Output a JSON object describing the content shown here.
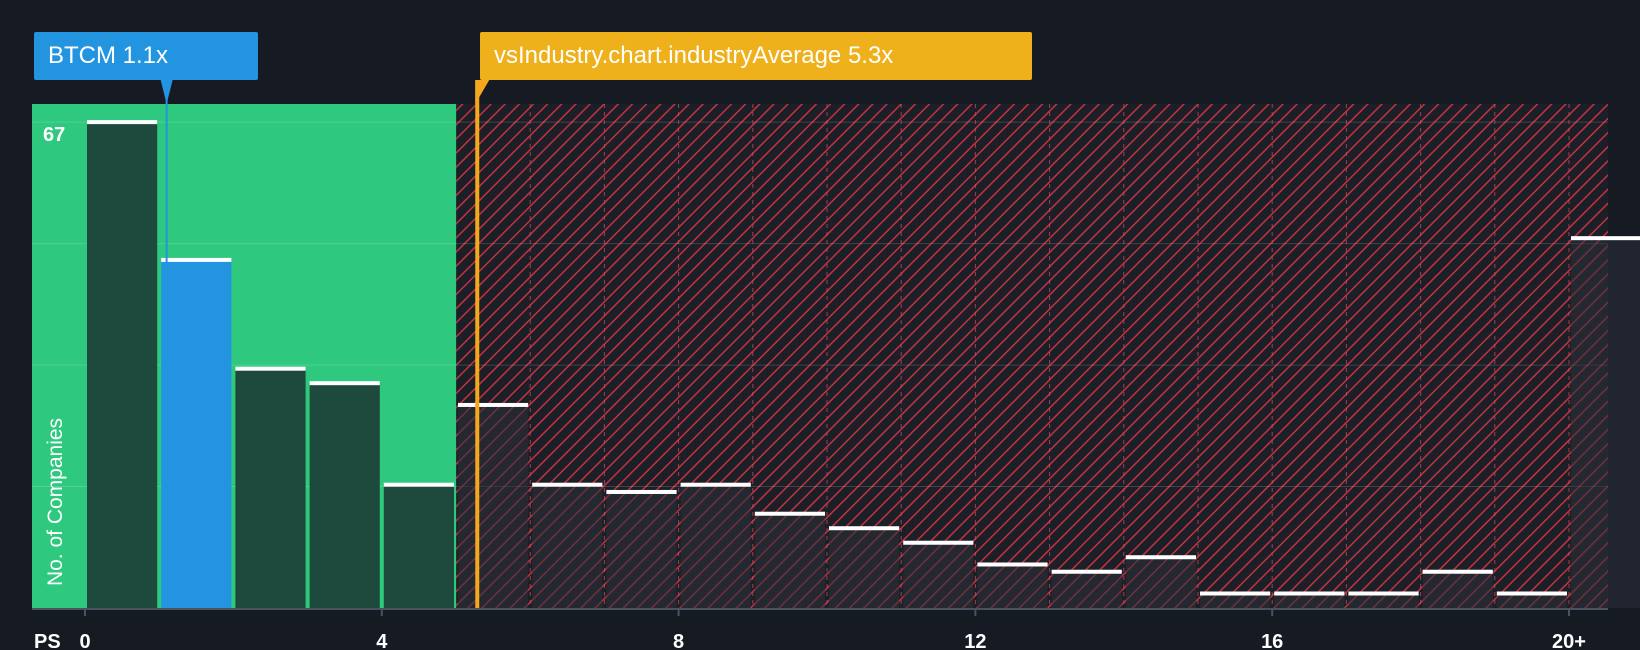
{
  "chart_data": {
    "type": "bar",
    "title": "",
    "xlabel": "PS",
    "ylabel": "No. of Companies",
    "xlim": [
      0,
      20.5
    ],
    "ylim": [
      0,
      69.5
    ],
    "bin_width": 1,
    "x_ticks": [
      {
        "value": 0,
        "label": "0"
      },
      {
        "value": 4,
        "label": "4"
      },
      {
        "value": 8,
        "label": "8"
      },
      {
        "value": 12,
        "label": "12"
      },
      {
        "value": 16,
        "label": "16"
      },
      {
        "value": 20,
        "label": "20+"
      }
    ],
    "y_tick_label": {
      "value": 67,
      "label": "67"
    },
    "y_gridlines": [
      16.75,
      33.5,
      50.25,
      67
    ],
    "bins": [
      {
        "x": 0,
        "value": 67
      },
      {
        "x": 1,
        "value": 48
      },
      {
        "x": 2,
        "value": 33
      },
      {
        "x": 3,
        "value": 31
      },
      {
        "x": 4,
        "value": 17
      },
      {
        "x": 5,
        "value": 28
      },
      {
        "x": 6,
        "value": 17
      },
      {
        "x": 7,
        "value": 16
      },
      {
        "x": 8,
        "value": 17
      },
      {
        "x": 9,
        "value": 13
      },
      {
        "x": 10,
        "value": 11
      },
      {
        "x": 11,
        "value": 9
      },
      {
        "x": 12,
        "value": 6
      },
      {
        "x": 13,
        "value": 5
      },
      {
        "x": 14,
        "value": 7
      },
      {
        "x": 15,
        "value": 2
      },
      {
        "x": 16,
        "value": 2
      },
      {
        "x": 17,
        "value": 2
      },
      {
        "x": 18,
        "value": 5
      },
      {
        "x": 19,
        "value": 2
      },
      {
        "x": 20,
        "value": 51
      }
    ],
    "company": {
      "ticker": "BTCM",
      "value": 1.1,
      "label": "BTCM 1.1x"
    },
    "industry_average": {
      "value": 5.3,
      "label": "vsIndustry.chart.industryAverage 5.3x"
    },
    "fair_zone_max": 5.3,
    "colors": {
      "background": "#151a23",
      "fair_zone": "#2ec97e",
      "bar": "#1e4a3d",
      "company_bar": "#2394e0",
      "overvalued_hatch": "#c3333f",
      "industry_line": "#f4a81d",
      "bar_cap": "#ffffff",
      "axis": "#4a5260",
      "text": "#ffffff"
    }
  }
}
